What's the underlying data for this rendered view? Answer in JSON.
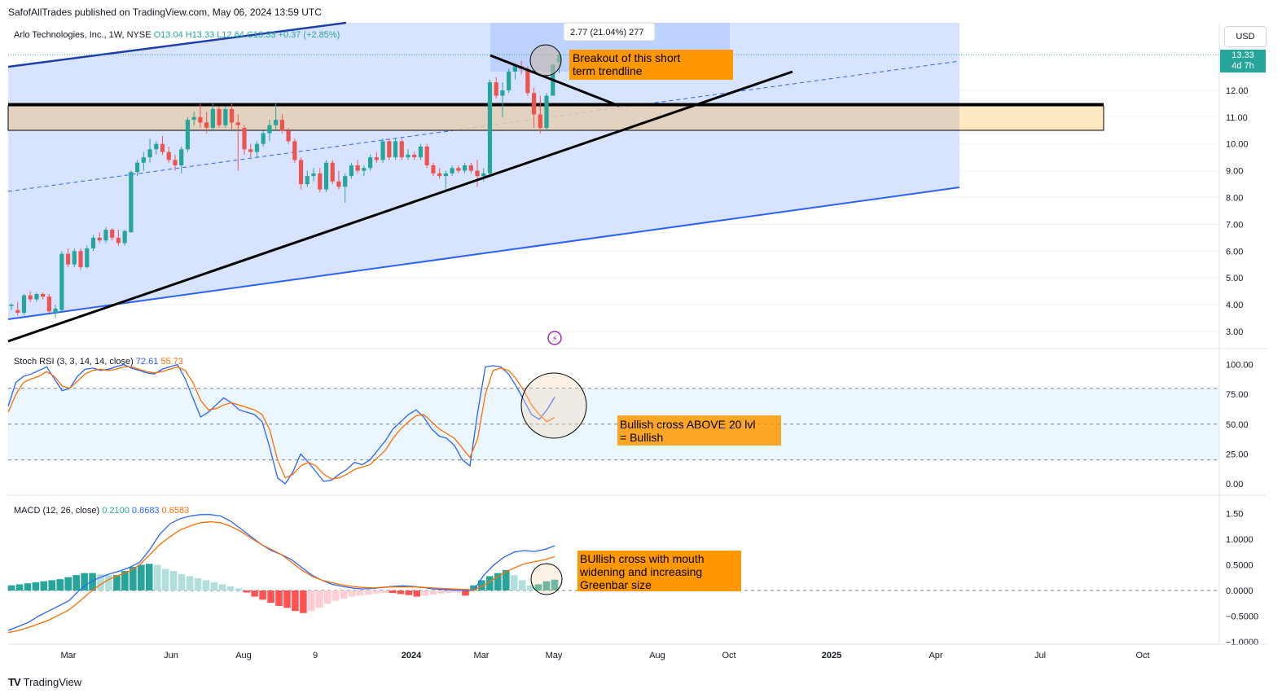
{
  "header": {
    "published_line": "SafofAllTrades published on TradingView.com, May 06, 2024 13:59 UTC"
  },
  "footer": {
    "brand": "TradingView"
  },
  "currency": "USD",
  "last_price": {
    "value": "13.33",
    "countdown": "4d 7h"
  },
  "colors": {
    "up": "#26a69a",
    "down": "#ef5350",
    "blue": "#2962ff",
    "orange": "#ff6d00",
    "channel_fill": "#d4e1ff",
    "zone_fill": "#e6cfb5",
    "annotation_bg": "#ff9800"
  },
  "chart_data": [
    {
      "type": "candlestick",
      "legend": {
        "symbol": "Arlo Technologies, Inc., 1W, NYSE",
        "o": "O13.04",
        "h": "H13.33",
        "l": "L12.64",
        "c": "C13.33",
        "chg": "+0.37 (+2.85%)"
      },
      "x_ticks": [
        "Mar",
        "Jun",
        "Aug",
        "9",
        "2024",
        "Mar",
        "May",
        "Aug",
        "Oct",
        "2025",
        "Apr",
        "Jul",
        "Oct"
      ],
      "y_ticks": [
        "3.00",
        "4.00",
        "5.00",
        "6.00",
        "7.00",
        "8.00",
        "9.00",
        "10.00",
        "11.00",
        "12.00"
      ],
      "ylim": [
        2.5,
        13.8
      ],
      "candles": [
        [
          3.95,
          4.05,
          3.8,
          4.0
        ],
        [
          3.8,
          4.1,
          3.6,
          3.7
        ],
        [
          3.7,
          4.4,
          3.6,
          4.35
        ],
        [
          4.35,
          4.5,
          4.1,
          4.2
        ],
        [
          4.2,
          4.45,
          4.1,
          4.4
        ],
        [
          4.4,
          4.45,
          4.2,
          4.3
        ],
        [
          4.3,
          4.4,
          3.7,
          3.75
        ],
        [
          3.7,
          4.0,
          3.5,
          3.85
        ],
        [
          3.8,
          6.0,
          3.75,
          5.9
        ],
        [
          5.9,
          6.1,
          5.4,
          5.5
        ],
        [
          5.5,
          6.1,
          5.4,
          6.0
        ],
        [
          6.0,
          6.1,
          5.3,
          5.4
        ],
        [
          5.4,
          6.2,
          5.35,
          6.1
        ],
        [
          6.1,
          6.6,
          6.0,
          6.5
        ],
        [
          6.5,
          6.7,
          6.3,
          6.4
        ],
        [
          6.4,
          6.9,
          6.3,
          6.8
        ],
        [
          6.8,
          6.85,
          6.4,
          6.5
        ],
        [
          6.5,
          6.8,
          6.2,
          6.3
        ],
        [
          6.3,
          6.8,
          6.2,
          6.75
        ],
        [
          6.7,
          9.0,
          6.7,
          8.95
        ],
        [
          8.95,
          9.4,
          8.8,
          9.3
        ],
        [
          9.3,
          9.7,
          9.0,
          9.5
        ],
        [
          9.5,
          10.2,
          9.3,
          9.8
        ],
        [
          9.8,
          10.1,
          9.6,
          10.0
        ],
        [
          10.0,
          10.3,
          9.6,
          9.7
        ],
        [
          9.7,
          9.9,
          9.3,
          9.4
        ],
        [
          9.4,
          9.6,
          9.0,
          9.2
        ],
        [
          9.2,
          9.9,
          8.9,
          9.8
        ],
        [
          9.8,
          11.0,
          9.7,
          10.9
        ],
        [
          10.9,
          11.2,
          10.7,
          11.0
        ],
        [
          11.0,
          11.5,
          10.6,
          10.8
        ],
        [
          10.8,
          11.2,
          10.4,
          10.6
        ],
        [
          10.6,
          11.5,
          10.5,
          11.3
        ],
        [
          11.3,
          11.4,
          10.6,
          10.7
        ],
        [
          10.7,
          11.4,
          10.6,
          11.3
        ],
        [
          11.3,
          11.5,
          10.5,
          10.8
        ],
        [
          10.8,
          11.1,
          9.0,
          10.7
        ],
        [
          10.6,
          10.7,
          9.6,
          9.8
        ],
        [
          9.8,
          10.0,
          9.5,
          9.7
        ],
        [
          9.7,
          10.1,
          9.5,
          10.0
        ],
        [
          10.0,
          10.5,
          9.9,
          10.4
        ],
        [
          10.4,
          10.9,
          10.1,
          10.7
        ],
        [
          10.7,
          11.5,
          10.5,
          10.9
        ],
        [
          10.9,
          11.1,
          10.4,
          10.5
        ],
        [
          10.5,
          10.6,
          10.0,
          10.1
        ],
        [
          10.1,
          10.2,
          9.3,
          9.4
        ],
        [
          9.4,
          9.5,
          8.3,
          8.5
        ],
        [
          8.5,
          9.0,
          8.4,
          8.8
        ],
        [
          8.8,
          9.1,
          8.6,
          8.9
        ],
        [
          8.9,
          9.1,
          8.2,
          8.3
        ],
        [
          8.3,
          9.4,
          8.2,
          9.3
        ],
        [
          9.3,
          9.4,
          8.5,
          8.6
        ],
        [
          8.6,
          9.0,
          8.3,
          8.4
        ],
        [
          8.4,
          8.9,
          7.8,
          8.8
        ],
        [
          8.8,
          9.3,
          8.7,
          9.2
        ],
        [
          9.2,
          9.4,
          8.9,
          9.0
        ],
        [
          9.0,
          9.2,
          8.8,
          9.1
        ],
        [
          9.1,
          9.6,
          9.0,
          9.5
        ],
        [
          9.5,
          9.7,
          9.3,
          9.4
        ],
        [
          9.4,
          10.2,
          9.3,
          10.1
        ],
        [
          10.1,
          10.2,
          9.4,
          9.5
        ],
        [
          9.5,
          10.2,
          9.4,
          10.1
        ],
        [
          10.1,
          10.2,
          9.4,
          9.5
        ],
        [
          9.5,
          9.8,
          9.4,
          9.6
        ],
        [
          9.6,
          9.7,
          9.4,
          9.5
        ],
        [
          9.5,
          10.0,
          9.4,
          9.9
        ],
        [
          9.9,
          10.0,
          9.1,
          9.2
        ],
        [
          9.2,
          9.3,
          8.8,
          8.9
        ],
        [
          8.9,
          9.1,
          8.7,
          8.8
        ],
        [
          8.8,
          9.0,
          8.3,
          8.9
        ],
        [
          8.9,
          9.2,
          8.8,
          9.1
        ],
        [
          9.1,
          9.2,
          8.9,
          9.0
        ],
        [
          9.0,
          9.3,
          8.9,
          9.2
        ],
        [
          9.2,
          9.3,
          8.9,
          9.0
        ],
        [
          9.0,
          9.4,
          8.4,
          8.8
        ],
        [
          8.8,
          9.1,
          8.6,
          8.9
        ],
        [
          8.9,
          12.4,
          8.8,
          12.3
        ],
        [
          12.3,
          12.5,
          11.7,
          11.8
        ],
        [
          11.8,
          12.3,
          11.0,
          12.0
        ],
        [
          12.0,
          12.8,
          11.9,
          12.7
        ],
        [
          12.7,
          13.0,
          12.4,
          12.9
        ],
        [
          12.9,
          13.1,
          12.6,
          12.8
        ],
        [
          12.8,
          12.9,
          11.8,
          11.9
        ],
        [
          11.9,
          12.1,
          10.6,
          11.1
        ],
        [
          11.1,
          11.8,
          10.4,
          10.6
        ],
        [
          10.6,
          11.9,
          10.5,
          11.8
        ],
        [
          11.8,
          13.0,
          11.8,
          12.96
        ],
        [
          13.04,
          13.33,
          12.64,
          13.33
        ]
      ],
      "measure_label": "2.77 (21.04%) 277",
      "annotation": "Breakout of this short\nterm trendline"
    },
    {
      "type": "line",
      "legend": {
        "name": "Stoch RSI (3, 3, 14, 14, close)",
        "k": "72.61",
        "d": "55.73"
      },
      "y_ticks": [
        "0.00",
        "25.00",
        "50.00",
        "75.00",
        "100.00"
      ],
      "ylim": [
        -5,
        110
      ],
      "bands": [
        20,
        50,
        80
      ],
      "series": [
        {
          "name": "K",
          "values": [
            65,
            85,
            90,
            92,
            95,
            98,
            88,
            78,
            80,
            90,
            96,
            97,
            95,
            96,
            98,
            100,
            97,
            95,
            93,
            92,
            96,
            98,
            100,
            88,
            72,
            56,
            60,
            66,
            72,
            68,
            62,
            60,
            58,
            52,
            30,
            5,
            0,
            10,
            25,
            18,
            10,
            2,
            3,
            8,
            12,
            18,
            16,
            20,
            28,
            36,
            46,
            52,
            58,
            62,
            56,
            46,
            40,
            38,
            32,
            20,
            15,
            60,
            98,
            99,
            98,
            92,
            82,
            70,
            58,
            54,
            62,
            72.61
          ]
        },
        {
          "name": "D",
          "values": [
            60,
            75,
            85,
            88,
            90,
            94,
            90,
            82,
            80,
            86,
            92,
            95,
            96,
            95,
            96,
            98,
            98,
            96,
            94,
            93,
            94,
            96,
            98,
            95,
            85,
            70,
            62,
            63,
            66,
            68,
            66,
            64,
            62,
            58,
            45,
            20,
            5,
            8,
            15,
            18,
            15,
            8,
            4,
            5,
            8,
            12,
            14,
            16,
            22,
            28,
            38,
            46,
            52,
            57,
            58,
            52,
            46,
            42,
            38,
            30,
            22,
            38,
            75,
            95,
            97,
            95,
            88,
            78,
            66,
            58,
            52,
            55.73
          ]
        }
      ],
      "annotation": "Bullish cross ABOVE 20 lvl\n= Bullish"
    },
    {
      "type": "bar",
      "legend": {
        "name": "MACD (12, 26, close)",
        "hist": "0.2100",
        "macd": "0.8683",
        "signal": "0.6583"
      },
      "y_ticks": [
        "−1.0000",
        "−0.5000",
        "0.0000",
        "0.5000",
        "1.0000",
        "1.50"
      ],
      "ylim": [
        -1.05,
        1.6
      ],
      "histogram": [
        0.1,
        0.12,
        0.14,
        0.16,
        0.18,
        0.2,
        0.22,
        0.26,
        0.3,
        0.34,
        0.34,
        0.32,
        0.3,
        0.3,
        0.38,
        0.46,
        0.5,
        0.52,
        0.5,
        0.42,
        0.38,
        0.32,
        0.28,
        0.24,
        0.2,
        0.16,
        0.12,
        0.08,
        0.04,
        -0.04,
        -0.12,
        -0.18,
        -0.24,
        -0.3,
        -0.34,
        -0.4,
        -0.44,
        -0.4,
        -0.34,
        -0.26,
        -0.2,
        -0.16,
        -0.12,
        -0.1,
        -0.08,
        -0.06,
        -0.05,
        -0.05,
        -0.07,
        -0.09,
        -0.12,
        -0.1,
        -0.08,
        -0.06,
        -0.05,
        -0.04,
        -0.1,
        0.1,
        0.2,
        0.28,
        0.34,
        0.4,
        0.3,
        0.2,
        0.1,
        0.12,
        0.18,
        0.21
      ],
      "macd": [
        -0.78,
        -0.7,
        -0.62,
        -0.5,
        -0.4,
        -0.3,
        -0.2,
        0.0,
        0.15,
        0.25,
        0.32,
        0.38,
        0.45,
        0.55,
        0.8,
        1.1,
        1.3,
        1.4,
        1.45,
        1.48,
        1.48,
        1.45,
        1.35,
        1.2,
        1.05,
        0.9,
        0.78,
        0.7,
        0.6,
        0.45,
        0.3,
        0.2,
        0.12,
        0.08,
        0.05,
        0.03,
        0.04,
        0.06,
        0.08,
        0.09,
        0.08,
        0.06,
        0.03,
        0.02,
        0.01,
        0.0,
        0.0,
        0.3,
        0.5,
        0.65,
        0.75,
        0.78,
        0.76,
        0.8,
        0.87
      ],
      "signal": [
        -0.82,
        -0.78,
        -0.72,
        -0.65,
        -0.58,
        -0.48,
        -0.38,
        -0.22,
        -0.05,
        0.1,
        0.22,
        0.3,
        0.38,
        0.5,
        0.7,
        0.9,
        1.05,
        1.18,
        1.26,
        1.32,
        1.34,
        1.32,
        1.25,
        1.15,
        1.02,
        0.9,
        0.8,
        0.7,
        0.55,
        0.4,
        0.28,
        0.2,
        0.15,
        0.11,
        0.08,
        0.06,
        0.05,
        0.06,
        0.07,
        0.07,
        0.07,
        0.06,
        0.05,
        0.04,
        0.03,
        0.02,
        0.01,
        0.1,
        0.22,
        0.34,
        0.44,
        0.52,
        0.56,
        0.6,
        0.66
      ],
      "annotation": "BUllish cross with mouth\nwidening and increasing\nGreenbar size"
    }
  ]
}
